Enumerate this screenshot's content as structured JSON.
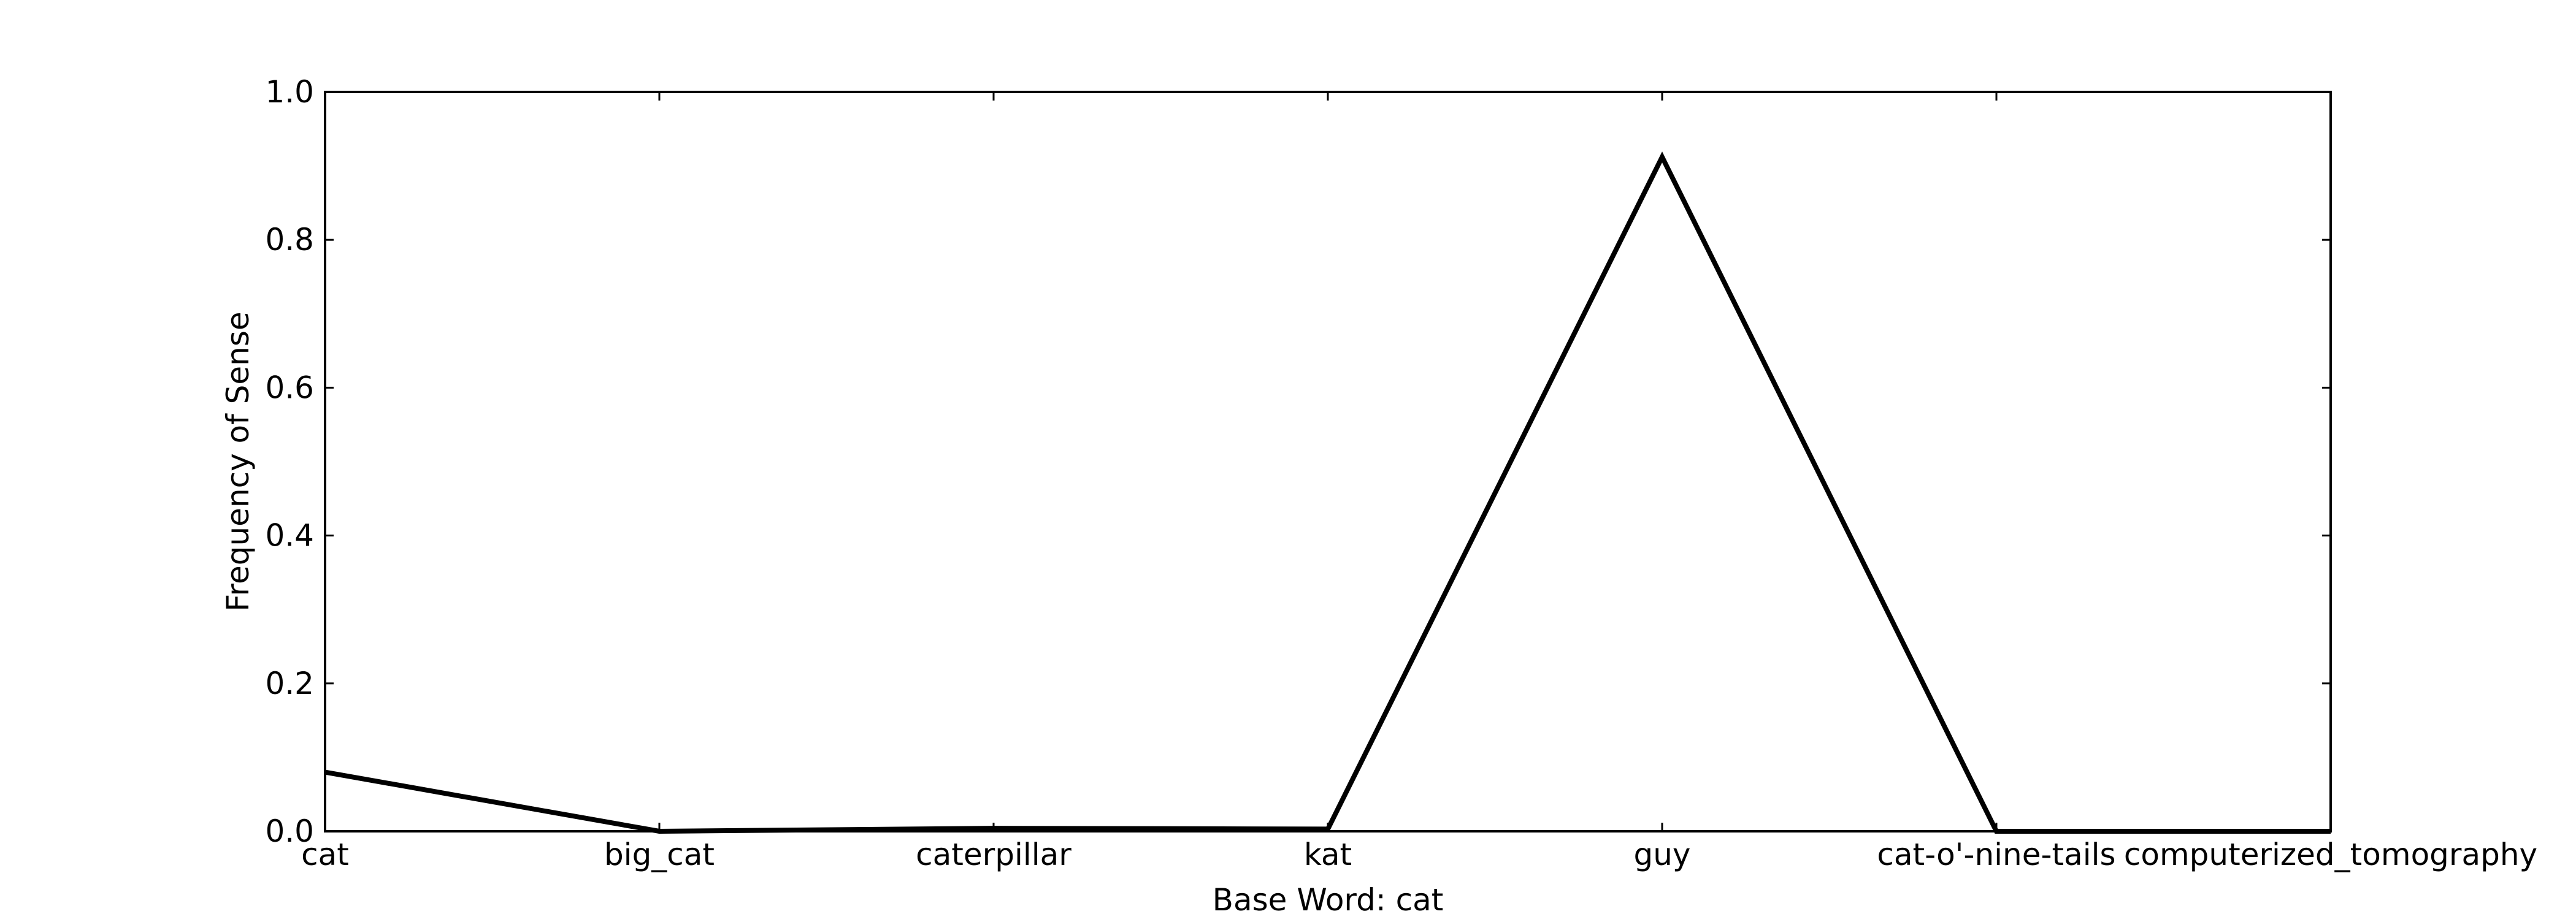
{
  "chart_data": {
    "type": "line",
    "categories": [
      "cat",
      "big_cat",
      "caterpillar",
      "kat",
      "guy",
      "cat-o'-nine-tails",
      "computerized_tomography"
    ],
    "series": [
      {
        "values": [
          0.08,
          0.0,
          0.004,
          0.003,
          0.912,
          0.0,
          0.0
        ],
        "color": "#000000"
      }
    ],
    "xlabel": "Base Word: cat",
    "ylabel": "Frequency of Sense",
    "ylim": [
      0.0,
      1.0
    ],
    "yticks": [
      "0.0",
      "0.2",
      "0.4",
      "0.6",
      "0.8",
      "1.0"
    ],
    "grid": false,
    "legend": "none"
  }
}
